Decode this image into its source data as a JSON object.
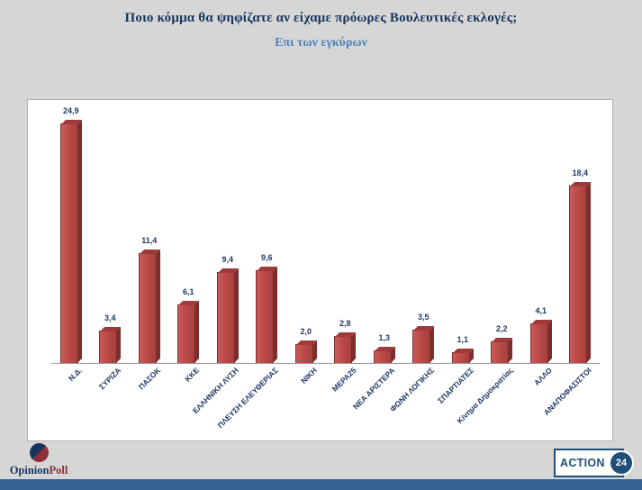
{
  "page": {
    "title": "Ποιο κόμμα θα ψηφίζατε αν είχαμε πρόωρες Βουλευτικές εκλογές;",
    "subtitle": "Επι των εγκύρων"
  },
  "chart_data": {
    "type": "bar",
    "title": "Ποιο κόμμα θα ψηφίζατε αν είχαμε πρόωρες Βουλευτικές εκλογές;",
    "subtitle": "Επι των εγκύρων",
    "categories": [
      "Ν.Δ.",
      "ΣΥΡΙΖΑ",
      "ΠΑΣΟΚ",
      "ΚΚΕ",
      "ΕΛΛΗΝΙΚΗ ΛΥΣΗ",
      "ΠΛΕΥΣΗ ΕΛΕΥΘΕΡΙΑΣ",
      "ΝΙΚΗ",
      "ΜΕΡΑ25",
      "ΝΕΑ ΑΡΙΣΤΕΡΑ",
      "ΦΩΝΗ ΛΟΓΙΚΗΣ",
      "ΣΠΑΡΤΙΑΤΕΣ",
      "Κίνημα Δημοκρατίας",
      "ΑΛΛΟ",
      "ΑΝΑΠΟΦΑΣΙΣΤΟΙ"
    ],
    "values": [
      24.9,
      3.4,
      11.4,
      6.1,
      9.4,
      9.6,
      2.0,
      2.8,
      1.3,
      3.5,
      1.1,
      2.2,
      4.1,
      18.4
    ],
    "value_labels": [
      "24,9",
      "3,4",
      "11,4",
      "6,1",
      "9,4",
      "9,6",
      "2,0",
      "2,8",
      "1,3",
      "3,5",
      "1,1",
      "2,2",
      "4,1",
      "18,4"
    ],
    "xlabel": "",
    "ylabel": "",
    "ylim": [
      0,
      26
    ],
    "grid": false,
    "legend": null,
    "bar_color": "#bc4a49",
    "bar_side_color": "#7c2d2c",
    "bar_top_color": "#9e3b3a",
    "label_color": "#1f3864"
  },
  "footer": {
    "opinionpoll": {
      "brand_part1": "Opinion",
      "brand_part2": "Poll"
    },
    "action24": {
      "name": "ACTION",
      "number": "24"
    }
  },
  "colors": {
    "background": "#d6d6d6",
    "panel": "#ffffff",
    "title": "#17365d",
    "subtitle": "#4f81bd",
    "bottom_strip": "#376092",
    "action24_blue": "#1f4e79"
  }
}
